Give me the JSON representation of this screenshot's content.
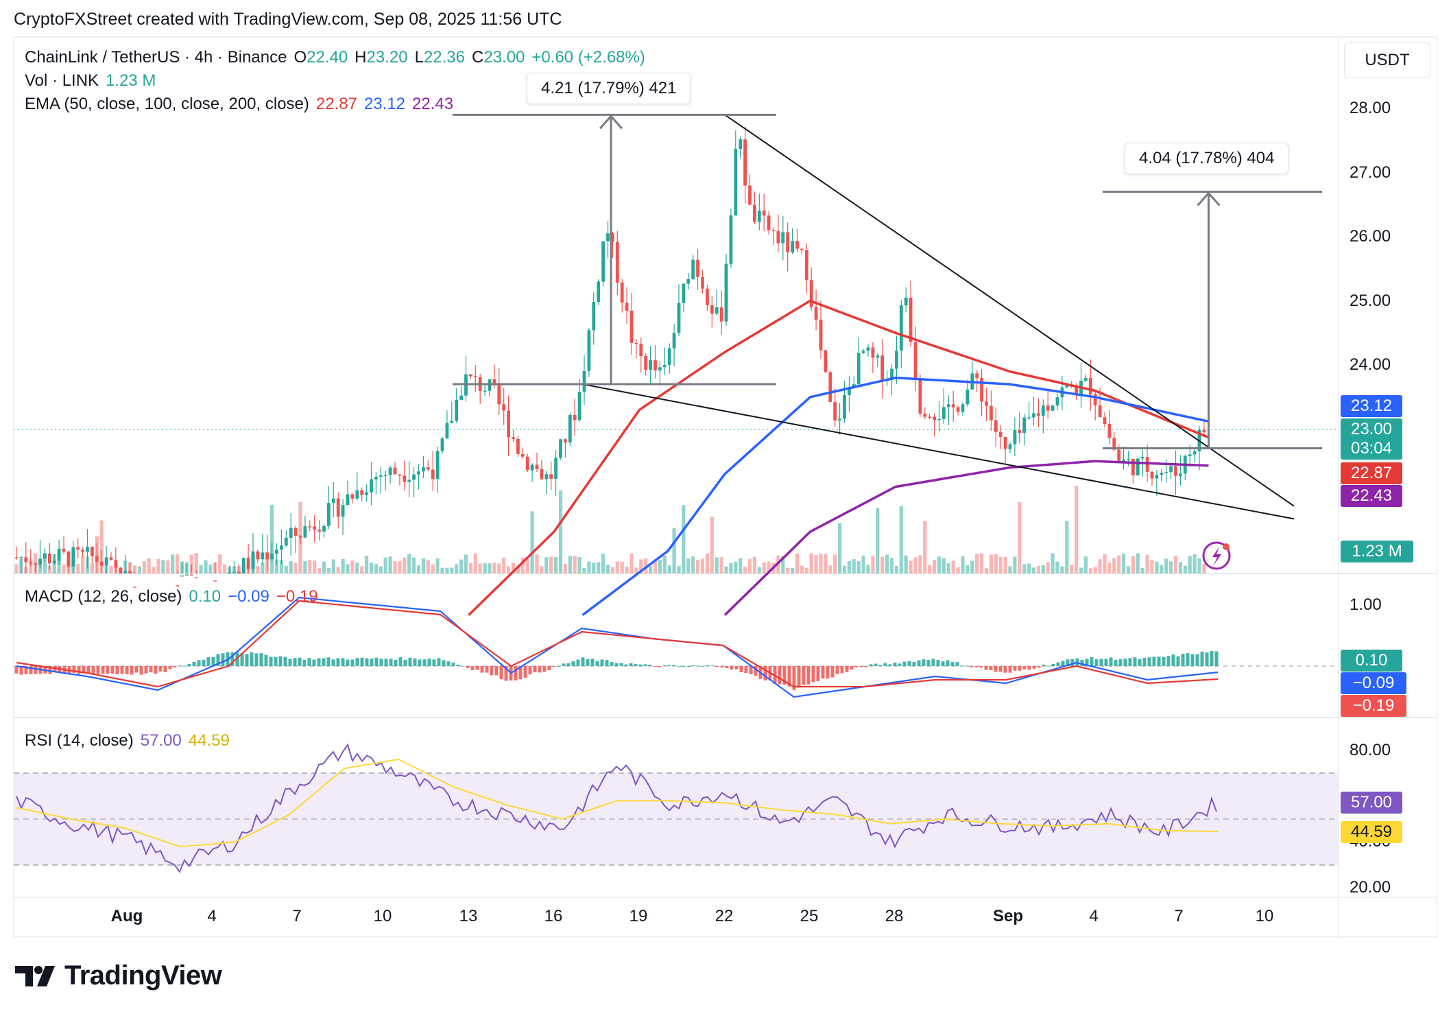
{
  "attribution": "CryptoFXStreet created with TradingView.com, Sep 08, 2025 11:56 UTC",
  "brand": "TradingView",
  "currency": "USDT",
  "colors": {
    "up": "#26a69a",
    "down": "#ef5350",
    "ema50": "#e53935",
    "ema100": "#2962ff",
    "ema200": "#8e24aa",
    "macd_line": "#2962ff",
    "signal_line": "#e53935",
    "rsi_line": "#7e57c2",
    "rsi_ma": "#fdd835",
    "rsi_band": "#ede7f6"
  },
  "legend": {
    "symbol": "ChainLink / TetherUS · 4h · Binance",
    "o_label": "O",
    "o_value": "22.40",
    "h_label": "H",
    "h_value": "23.20",
    "l_label": "L",
    "l_value": "22.36",
    "c_label": "C",
    "c_value": "23.00",
    "change": "+0.60 (+2.68%)",
    "vol_label": "Vol · LINK",
    "vol_value": "1.23 M",
    "ema_label": "EMA (50, close, 100, close, 200, close)",
    "ema50_value": "22.87",
    "ema100_value": "23.12",
    "ema200_value": "22.43",
    "macd_label": "MACD (12, 26, close)",
    "macd_hist_value": "0.10",
    "macd_value": "−0.09",
    "macd_signal_value": "−0.19",
    "rsi_label": "RSI (14, close)",
    "rsi_value": "57.00",
    "rsi_ma_value": "44.59"
  },
  "measurements": {
    "first": "4.21 (17.79%) 421",
    "second": "4.04 (17.78%) 404"
  },
  "price_axis": {
    "ticks": [
      "28.00",
      "27.00",
      "26.00",
      "25.00",
      "24.00"
    ],
    "tags": {
      "ema100": "23.12",
      "last": "23.00",
      "countdown": "03:04",
      "ema50": "22.87",
      "ema200": "22.43",
      "volume": "1.23 M"
    }
  },
  "macd_axis": {
    "ticks": [
      "1.00"
    ],
    "tags": {
      "hist": "0.10",
      "macd": "−0.09",
      "signal": "−0.19"
    }
  },
  "rsi_axis": {
    "ticks": [
      "80.00",
      "40.00",
      "20.00"
    ],
    "tags": {
      "rsi": "57.00",
      "ma": "44.59"
    }
  },
  "time_axis": [
    "Aug",
    "4",
    "7",
    "10",
    "13",
    "16",
    "19",
    "22",
    "25",
    "28",
    "Sep",
    "4",
    "7",
    "10"
  ],
  "chart_data": [
    {
      "type": "candlestick",
      "title": "ChainLink / TetherUS · 4h · Binance",
      "ylim": [
        22.0,
        28.6
      ],
      "x_range": [
        "2025-07-31",
        "2025-09-08"
      ],
      "close_path": [
        {
          "x": "2025-07-31",
          "y": 21.0
        },
        {
          "x": "2025-08-02",
          "y": 20.4
        },
        {
          "x": "2025-08-05",
          "y": 20.8
        },
        {
          "x": "2025-08-08",
          "y": 21.6
        },
        {
          "x": "2025-08-10",
          "y": 22.3
        },
        {
          "x": "2025-08-12",
          "y": 22.4
        },
        {
          "x": "2025-08-13",
          "y": 23.8
        },
        {
          "x": "2025-08-14",
          "y": 23.6
        },
        {
          "x": "2025-08-15",
          "y": 22.6
        },
        {
          "x": "2025-08-16",
          "y": 22.2
        },
        {
          "x": "2025-08-17",
          "y": 23.4
        },
        {
          "x": "2025-08-18",
          "y": 26.2
        },
        {
          "x": "2025-08-19",
          "y": 24.2
        },
        {
          "x": "2025-08-20",
          "y": 23.8
        },
        {
          "x": "2025-08-21",
          "y": 25.7
        },
        {
          "x": "2025-08-22",
          "y": 24.6
        },
        {
          "x": "2025-08-22T16:00",
          "y": 27.8
        },
        {
          "x": "2025-08-23",
          "y": 26.4
        },
        {
          "x": "2025-08-24",
          "y": 26.0
        },
        {
          "x": "2025-08-25",
          "y": 25.6
        },
        {
          "x": "2025-08-26",
          "y": 23.0
        },
        {
          "x": "2025-08-27",
          "y": 24.2
        },
        {
          "x": "2025-08-28",
          "y": 23.8
        },
        {
          "x": "2025-08-28T12:00",
          "y": 25.2
        },
        {
          "x": "2025-08-29",
          "y": 23.4
        },
        {
          "x": "2025-08-30",
          "y": 23.2
        },
        {
          "x": "2025-08-31",
          "y": 23.8
        },
        {
          "x": "2025-09-01",
          "y": 22.6
        },
        {
          "x": "2025-09-02",
          "y": 23.2
        },
        {
          "x": "2025-09-03",
          "y": 23.6
        },
        {
          "x": "2025-09-04",
          "y": 23.7
        },
        {
          "x": "2025-09-05",
          "y": 22.5
        },
        {
          "x": "2025-09-06",
          "y": 22.4
        },
        {
          "x": "2025-09-07",
          "y": 22.3
        },
        {
          "x": "2025-09-08",
          "y": 23.0
        }
      ],
      "ema50": [
        {
          "x": "2025-08-13",
          "y": 20.1
        },
        {
          "x": "2025-08-16",
          "y": 21.4
        },
        {
          "x": "2025-08-19",
          "y": 23.3
        },
        {
          "x": "2025-08-22",
          "y": 24.2
        },
        {
          "x": "2025-08-25",
          "y": 25.0
        },
        {
          "x": "2025-08-28",
          "y": 24.5
        },
        {
          "x": "2025-09-01",
          "y": 23.9
        },
        {
          "x": "2025-09-04",
          "y": 23.6
        },
        {
          "x": "2025-09-08",
          "y": 22.87
        }
      ],
      "ema100": [
        {
          "x": "2025-08-17",
          "y": 20.1
        },
        {
          "x": "2025-08-20",
          "y": 21.1
        },
        {
          "x": "2025-08-22",
          "y": 22.3
        },
        {
          "x": "2025-08-25",
          "y": 23.5
        },
        {
          "x": "2025-08-28",
          "y": 23.8
        },
        {
          "x": "2025-09-01",
          "y": 23.7
        },
        {
          "x": "2025-09-04",
          "y": 23.5
        },
        {
          "x": "2025-09-08",
          "y": 23.12
        }
      ],
      "ema200": [
        {
          "x": "2025-08-22",
          "y": 20.1
        },
        {
          "x": "2025-08-25",
          "y": 21.4
        },
        {
          "x": "2025-08-28",
          "y": 22.1
        },
        {
          "x": "2025-09-01",
          "y": 22.4
        },
        {
          "x": "2025-09-04",
          "y": 22.5
        },
        {
          "x": "2025-09-08",
          "y": 22.43
        }
      ],
      "trendline_upper": [
        {
          "x": "2025-08-22",
          "y": 27.9
        },
        {
          "x": "2025-09-11",
          "y": 21.8
        }
      ],
      "trendline_lower": [
        {
          "x": "2025-08-17",
          "y": 23.7
        },
        {
          "x": "2025-09-11",
          "y": 21.6
        }
      ],
      "measure_1": {
        "from": 23.7,
        "to": 27.9,
        "x": "2025-08-18"
      },
      "measure_2": {
        "from": 22.7,
        "to": 26.7,
        "x": "2025-09-08"
      }
    },
    {
      "type": "line",
      "title": "MACD (12, 26, close)",
      "series": [
        {
          "name": "MACD",
          "values": [
            0.0,
            -0.15,
            -0.35,
            0.1,
            1.0,
            0.9,
            0.8,
            -0.1,
            0.55,
            0.4,
            0.3,
            -0.45,
            -0.3,
            -0.15,
            -0.25,
            0.05,
            -0.2,
            -0.09
          ]
        },
        {
          "name": "Signal",
          "values": [
            0.05,
            -0.1,
            -0.3,
            0.0,
            0.95,
            0.85,
            0.75,
            0.0,
            0.5,
            0.4,
            0.3,
            -0.3,
            -0.3,
            -0.2,
            -0.2,
            0.0,
            -0.25,
            -0.19
          ]
        }
      ]
    },
    {
      "type": "line",
      "title": "RSI (14, close)",
      "ylim": [
        20,
        90
      ],
      "series": [
        {
          "name": "RSI",
          "values": [
            58,
            48,
            42,
            30,
            40,
            62,
            80,
            70,
            58,
            52,
            46,
            74,
            56,
            62,
            48,
            58,
            40,
            52,
            48,
            46,
            52,
            44,
            57
          ]
        },
        {
          "name": "MA",
          "values": [
            55,
            50,
            46,
            38,
            40,
            52,
            72,
            76,
            64,
            56,
            50,
            58,
            58,
            57,
            54,
            52,
            48,
            50,
            48,
            47,
            48,
            45,
            44.59
          ]
        }
      ]
    }
  ]
}
